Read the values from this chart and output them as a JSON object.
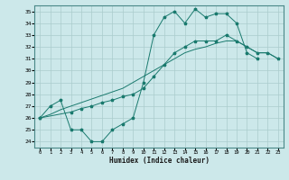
{
  "xlabel": "Humidex (Indice chaleur)",
  "bg_color": "#cce8ea",
  "line_color": "#1a7a6e",
  "grid_color": "#aacccc",
  "xlim": [
    -0.5,
    23.5
  ],
  "ylim": [
    23.5,
    35.5
  ],
  "xticks": [
    0,
    1,
    2,
    3,
    4,
    5,
    6,
    7,
    8,
    9,
    10,
    11,
    12,
    13,
    14,
    15,
    16,
    17,
    18,
    19,
    20,
    21,
    22,
    23
  ],
  "yticks": [
    24,
    25,
    26,
    27,
    28,
    29,
    30,
    31,
    32,
    33,
    34,
    35
  ],
  "line1_x": [
    0,
    1,
    2,
    3,
    4,
    5,
    6,
    7,
    8,
    9,
    10,
    11,
    12,
    13,
    14,
    15,
    16,
    17,
    18,
    19,
    20,
    21
  ],
  "line1_y": [
    26.0,
    27.0,
    27.5,
    25.0,
    25.0,
    24.0,
    24.0,
    25.0,
    25.5,
    26.0,
    29.0,
    33.0,
    34.5,
    35.0,
    34.0,
    35.2,
    34.5,
    34.8,
    34.8,
    34.0,
    31.5,
    31.0
  ],
  "line2_x": [
    0,
    3,
    4,
    5,
    6,
    7,
    8,
    9,
    10,
    11,
    12,
    13,
    14,
    15,
    16,
    17,
    18,
    19,
    20,
    21,
    22,
    23
  ],
  "line2_y": [
    26.0,
    26.5,
    26.8,
    27.0,
    27.3,
    27.5,
    27.8,
    28.0,
    28.5,
    29.5,
    30.5,
    31.5,
    32.0,
    32.5,
    32.5,
    32.5,
    33.0,
    32.5,
    32.0,
    31.5,
    31.5,
    31.0
  ],
  "line3_x": [
    0,
    1,
    2,
    3,
    4,
    5,
    6,
    7,
    8,
    9,
    10,
    11,
    12,
    13,
    14,
    15,
    16,
    17,
    18,
    19,
    20,
    21,
    22,
    23
  ],
  "line3_y": [
    26.0,
    26.3,
    26.7,
    27.0,
    27.3,
    27.6,
    27.9,
    28.2,
    28.5,
    29.0,
    29.5,
    30.0,
    30.5,
    31.0,
    31.5,
    31.8,
    32.0,
    32.3,
    32.5,
    32.5,
    32.0,
    31.5,
    31.5,
    31.0
  ]
}
